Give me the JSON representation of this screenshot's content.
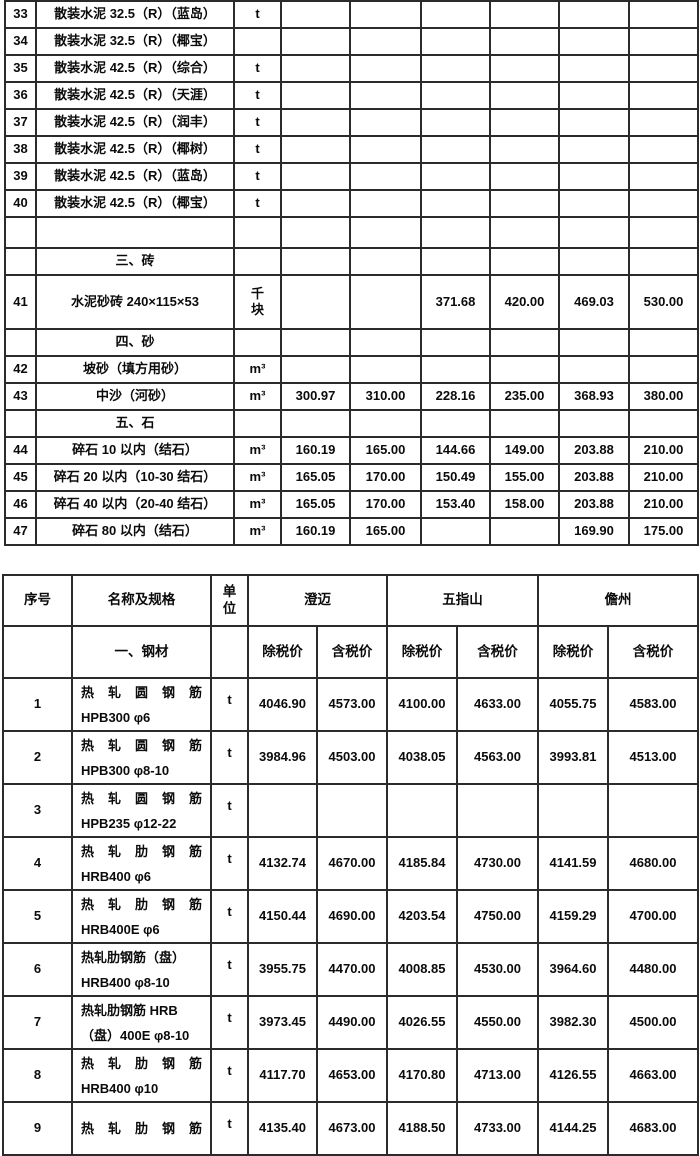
{
  "colors": {
    "price_text": "#ee0b00",
    "grid_line": "#2b2b2b",
    "text": "#0b0b0b",
    "background": "#ffffff"
  },
  "table1": {
    "rows": [
      {
        "kind": "item",
        "no": "33",
        "name": "散装水泥 32.5（R）（蓝岛）",
        "unit": "t",
        "values": [
          "",
          "",
          "",
          "",
          "",
          ""
        ]
      },
      {
        "kind": "item",
        "no": "34",
        "name": "散装水泥 32.5（R）（椰宝）",
        "unit": "",
        "values": [
          "",
          "",
          "",
          "",
          "",
          ""
        ]
      },
      {
        "kind": "item",
        "no": "35",
        "name": "散装水泥 42.5（R）（综合）",
        "unit": "t",
        "values": [
          "",
          "",
          "",
          "",
          "",
          ""
        ]
      },
      {
        "kind": "item",
        "no": "36",
        "name": "散装水泥 42.5（R）（天涯）",
        "unit": "t",
        "values": [
          "",
          "",
          "",
          "",
          "",
          ""
        ]
      },
      {
        "kind": "item",
        "no": "37",
        "name": "散装水泥 42.5（R）（润丰）",
        "unit": "t",
        "values": [
          "",
          "",
          "",
          "",
          "",
          ""
        ]
      },
      {
        "kind": "item",
        "no": "38",
        "name": "散装水泥 42.5（R）（椰树）",
        "unit": "t",
        "values": [
          "",
          "",
          "",
          "",
          "",
          ""
        ]
      },
      {
        "kind": "item",
        "no": "39",
        "name": "散装水泥 42.5（R）（蓝岛）",
        "unit": "t",
        "values": [
          "",
          "",
          "",
          "",
          "",
          ""
        ]
      },
      {
        "kind": "item",
        "no": "40",
        "name": "散装水泥 42.5（R）（椰宝）",
        "unit": "t",
        "values": [
          "",
          "",
          "",
          "",
          "",
          ""
        ]
      },
      {
        "kind": "spacer"
      },
      {
        "kind": "section",
        "name": "三、砖"
      },
      {
        "kind": "item",
        "no": "41",
        "name": "水泥砂砖 240×115×53",
        "unit": "千\n块",
        "values": [
          "",
          "",
          "371.68",
          "420.00",
          "469.03",
          "530.00"
        ]
      },
      {
        "kind": "section",
        "name": "四、砂"
      },
      {
        "kind": "item",
        "no": "42",
        "name": "坡砂（填方用砂）",
        "unit": "m³",
        "values": [
          "",
          "",
          "",
          "",
          "",
          ""
        ]
      },
      {
        "kind": "item",
        "no": "43",
        "name": "中沙（河砂）",
        "unit": "m³",
        "values": [
          "300.97",
          "310.00",
          "228.16",
          "235.00",
          "368.93",
          "380.00"
        ]
      },
      {
        "kind": "section",
        "name": "五、石"
      },
      {
        "kind": "item",
        "no": "44",
        "name": "碎石 10 以内（结石）",
        "unit": "m³",
        "values": [
          "160.19",
          "165.00",
          "144.66",
          "149.00",
          "203.88",
          "210.00"
        ]
      },
      {
        "kind": "item",
        "no": "45",
        "name": "碎石 20 以内（10-30 结石）",
        "unit": "m³",
        "values": [
          "165.05",
          "170.00",
          "150.49",
          "155.00",
          "203.88",
          "210.00"
        ]
      },
      {
        "kind": "item",
        "no": "46",
        "name": "碎石 40 以内（20-40 结石）",
        "unit": "m³",
        "values": [
          "165.05",
          "170.00",
          "153.40",
          "158.00",
          "203.88",
          "210.00"
        ]
      },
      {
        "kind": "item",
        "no": "47",
        "name": "碎石 80 以内（结石）",
        "unit": "m³",
        "values": [
          "160.19",
          "165.00",
          "",
          "",
          "169.90",
          "175.00"
        ]
      }
    ]
  },
  "table2": {
    "header": {
      "no": "序号",
      "name": "名称及规格",
      "unit": "单\n位",
      "cities": [
        "澄迈",
        "五指山",
        "儋州"
      ],
      "price_types": [
        "除税价",
        "含税价"
      ]
    },
    "section_label": "一、钢材",
    "rows": [
      {
        "no": "1",
        "line1": "热 轧 圆 钢 筋",
        "spread": true,
        "line2": "HPB300 φ6",
        "unit": "t",
        "values": [
          "4046.90",
          "4573.00",
          "4100.00",
          "4633.00",
          "4055.75",
          "4583.00"
        ]
      },
      {
        "no": "2",
        "line1": "热 轧 圆 钢 筋",
        "spread": true,
        "line2": "HPB300 φ8-10",
        "unit": "t",
        "values": [
          "3984.96",
          "4503.00",
          "4038.05",
          "4563.00",
          "3993.81",
          "4513.00"
        ]
      },
      {
        "no": "3",
        "line1": "热 轧 圆 钢 筋",
        "spread": true,
        "line2": "HPB235 φ12-22",
        "unit": "t",
        "values": [
          "",
          "",
          "",
          "",
          "",
          ""
        ]
      },
      {
        "no": "4",
        "line1": "热 轧 肋 钢 筋",
        "spread": true,
        "line2": "HRB400 φ6",
        "unit": "t",
        "values": [
          "4132.74",
          "4670.00",
          "4185.84",
          "4730.00",
          "4141.59",
          "4680.00"
        ]
      },
      {
        "no": "5",
        "line1": "热 轧 肋 钢 筋",
        "spread": true,
        "line2": "HRB400E φ6",
        "unit": "t",
        "values": [
          "4150.44",
          "4690.00",
          "4203.54",
          "4750.00",
          "4159.29",
          "4700.00"
        ]
      },
      {
        "no": "6",
        "line1": "热轧肋钢筋（盘）",
        "spread": false,
        "line2": "HRB400 φ8-10",
        "unit": "t",
        "values": [
          "3955.75",
          "4470.00",
          "4008.85",
          "4530.00",
          "3964.60",
          "4480.00"
        ]
      },
      {
        "no": "7",
        "line1": "热轧肋钢筋 HRB",
        "spread": false,
        "line2": "（盘）400E φ8-10",
        "unit": "t",
        "values": [
          "3973.45",
          "4490.00",
          "4026.55",
          "4550.00",
          "3982.30",
          "4500.00"
        ]
      },
      {
        "no": "8",
        "line1": "热 轧 肋 钢 筋",
        "spread": true,
        "line2": "HRB400 φ10",
        "unit": "t",
        "values": [
          "4117.70",
          "4653.00",
          "4170.80",
          "4713.00",
          "4126.55",
          "4663.00"
        ]
      },
      {
        "no": "9",
        "line1": "热 轧 肋 钢 筋",
        "spread": true,
        "line2": "",
        "unit": "t",
        "values": [
          "4135.40",
          "4673.00",
          "4188.50",
          "4733.00",
          "4144.25",
          "4683.00"
        ]
      }
    ]
  }
}
